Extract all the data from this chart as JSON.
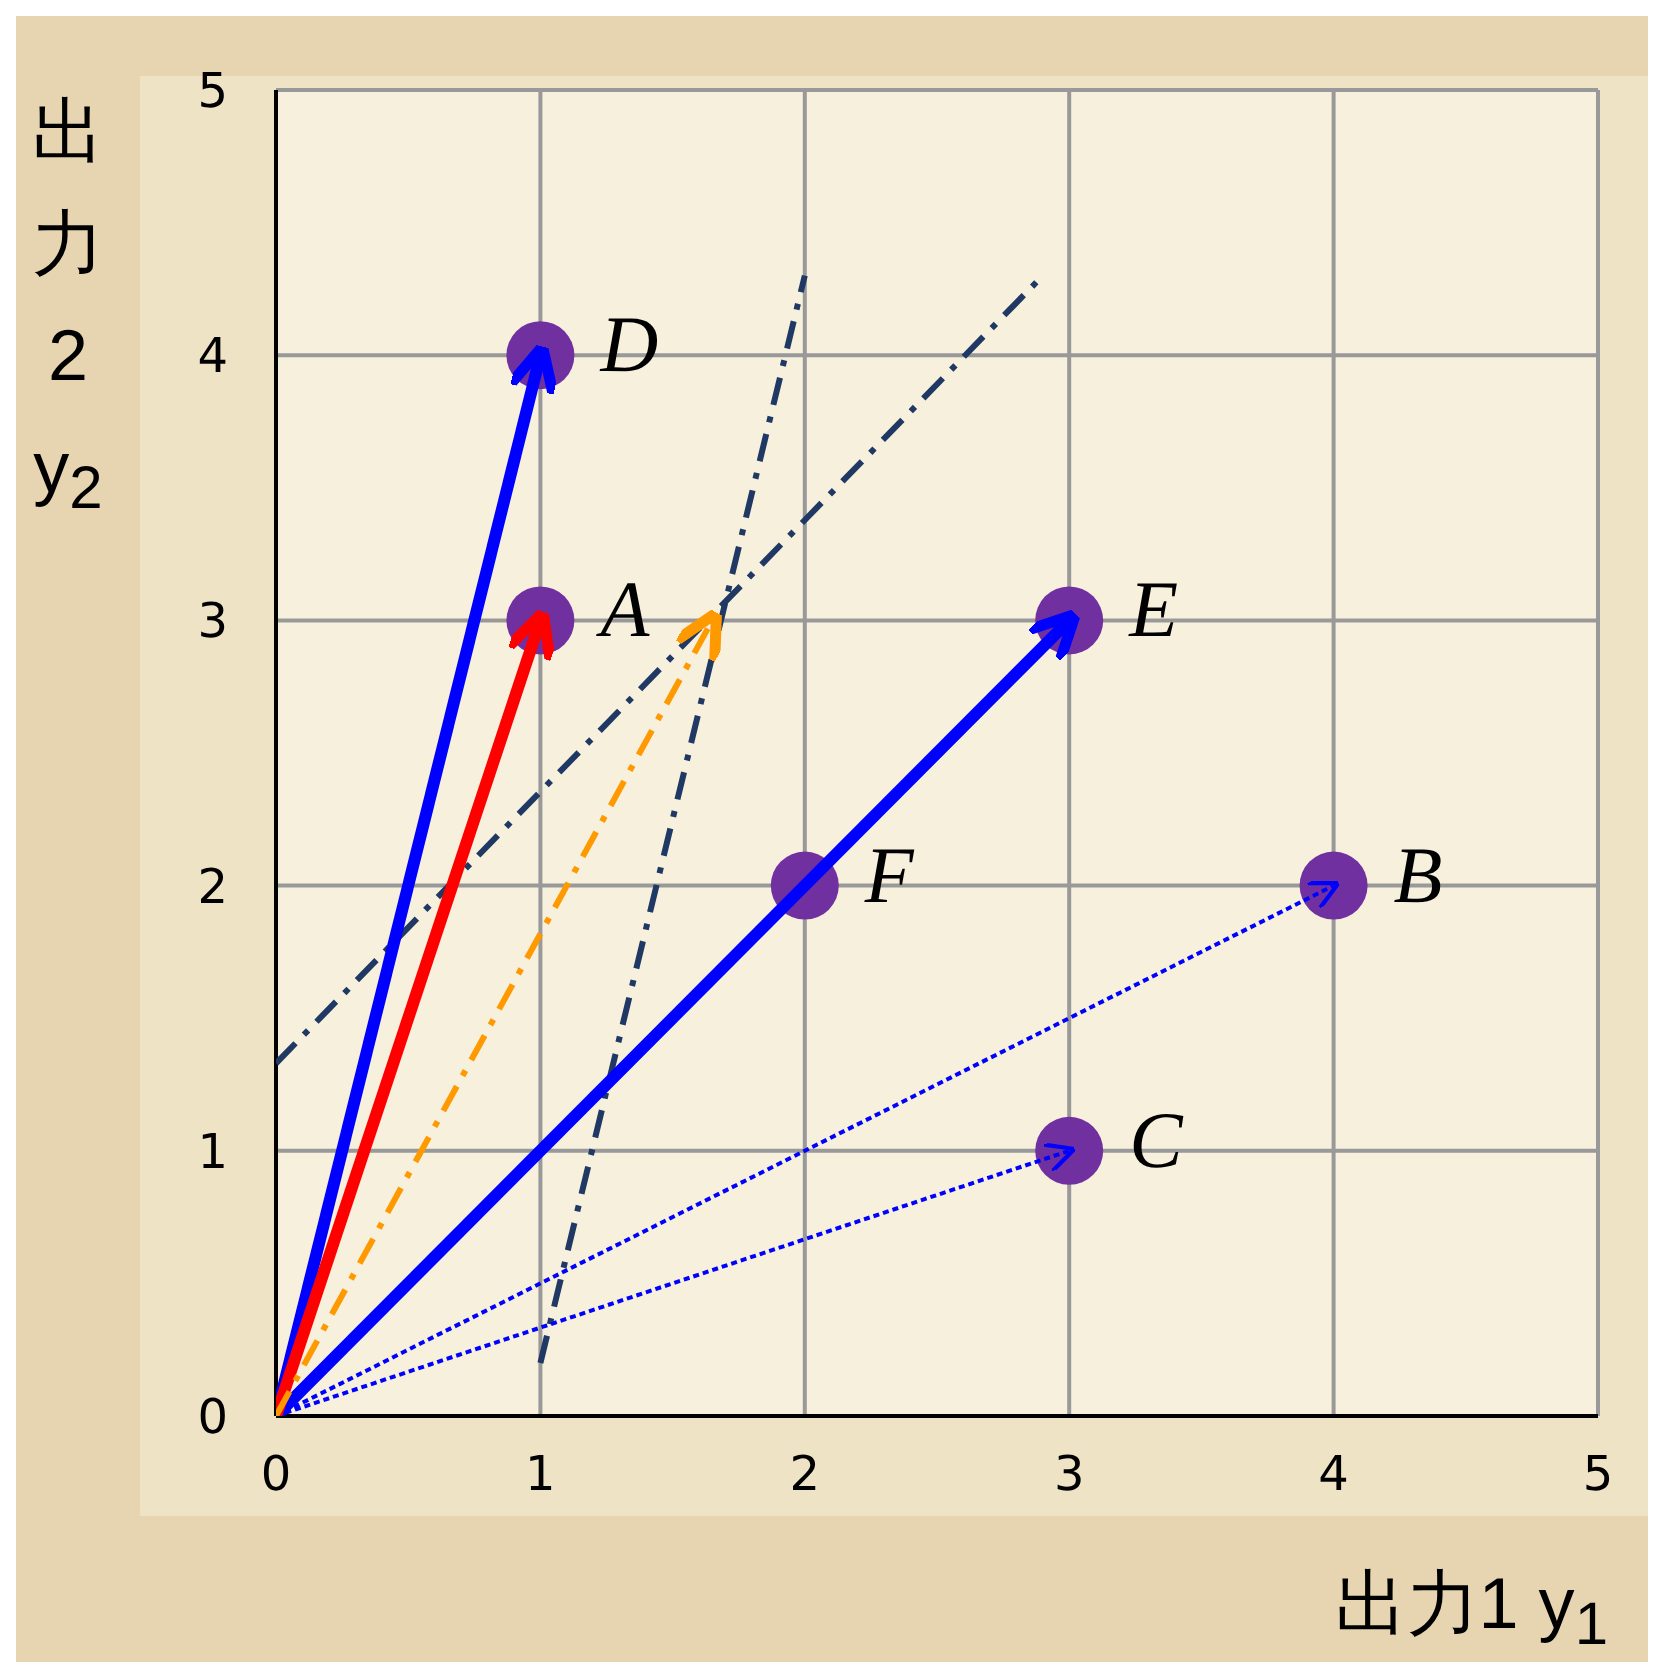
{
  "chart_data": {
    "type": "scatter",
    "xlabel": "出力1 y$_{1}$",
    "ylabel": "出力2 y$_{2}$",
    "xlim": [
      0,
      5
    ],
    "ylim": [
      0,
      5
    ],
    "xticks": [
      0,
      1,
      2,
      3,
      4,
      5
    ],
    "yticks": [
      0,
      1,
      2,
      3,
      4,
      5
    ],
    "grid": true,
    "legend": false,
    "series": [
      {
        "type": "line",
        "color": "#1f3864",
        "line_style": "dashed",
        "marker": "none",
        "x": [
          0,
          2.9
        ],
        "values": [
          1.33,
          4.3
        ]
      },
      {
        "type": "line",
        "color": "#1f3864",
        "line_style": "dashed",
        "marker": "none",
        "x": [
          1,
          2
        ],
        "values": [
          0.2,
          4.3
        ]
      },
      {
        "type": "line",
        "color": "#0000ff",
        "line_style": "dotted",
        "marker": "none",
        "x": [
          0,
          4
        ],
        "values": [
          0,
          2
        ]
      },
      {
        "type": "line",
        "color": "#0000ff",
        "line_style": "dotted",
        "marker": "none",
        "x": [
          0,
          3
        ],
        "values": [
          0,
          1
        ]
      },
      {
        "type": "line",
        "color": "#0000ff",
        "line_style": "solid",
        "marker": "none",
        "x": [
          0,
          1
        ],
        "values": [
          0,
          4
        ]
      },
      {
        "type": "line",
        "color": "#0000ff",
        "line_style": "solid",
        "marker": "none",
        "x": [
          0,
          3
        ],
        "values": [
          0,
          3
        ]
      },
      {
        "type": "line",
        "color": "#ff0000",
        "line_style": "solid",
        "marker": "none",
        "x": [
          0,
          1
        ],
        "values": [
          0,
          3
        ]
      },
      {
        "type": "line",
        "color": "#ff9900",
        "line_style": "dashed",
        "marker": "none",
        "x": [
          0,
          1.65
        ],
        "values": [
          0,
          3
        ]
      },
      {
        "color": "#7030a0",
        "marker": "circle",
        "x": [
          1,
          4,
          3,
          1,
          3,
          2
        ],
        "values": [
          3,
          2,
          1,
          4,
          3,
          2
        ]
      }
    ],
    "annotations": [
      {
        "text": "A",
        "x": 1,
        "y": 3
      },
      {
        "text": "B",
        "x": 4,
        "y": 2
      },
      {
        "text": "C",
        "x": 3,
        "y": 1
      },
      {
        "text": "D",
        "x": 1,
        "y": 4
      },
      {
        "text": "E",
        "x": 3,
        "y": 3
      },
      {
        "text": "F",
        "x": 2,
        "y": 2
      }
    ]
  }
}
